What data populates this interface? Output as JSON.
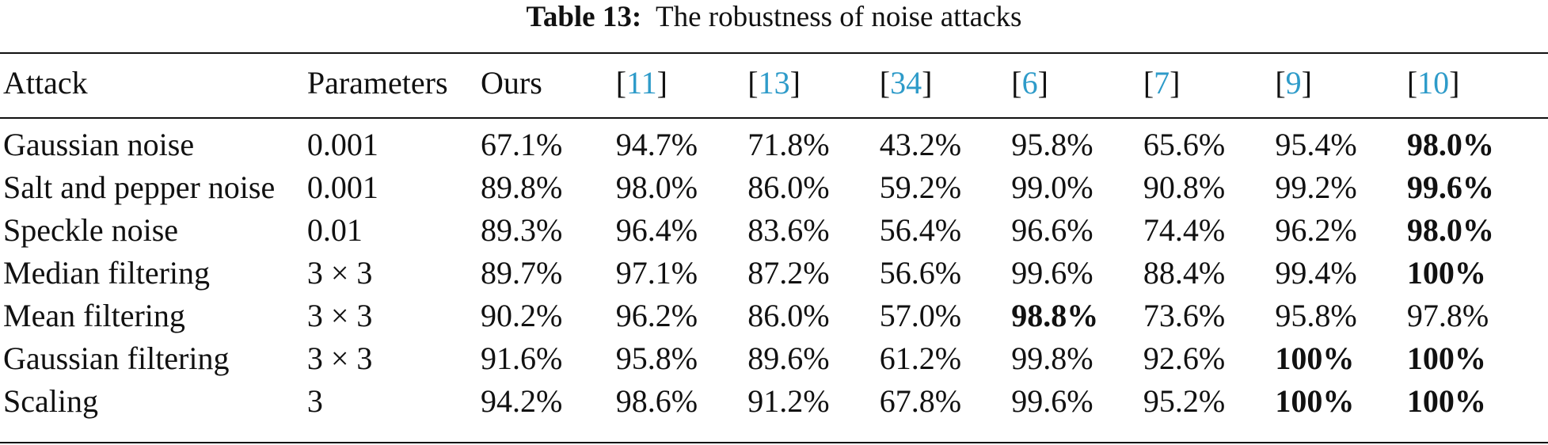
{
  "caption": {
    "label": "Table 13:",
    "text": "The robustness of noise attacks"
  },
  "table": {
    "headers": [
      {
        "text": "Attack",
        "ref": false
      },
      {
        "text": "Parameters",
        "ref": false
      },
      {
        "text": "Ours",
        "ref": false
      },
      {
        "text": "11",
        "ref": true
      },
      {
        "text": "13",
        "ref": true
      },
      {
        "text": "34",
        "ref": true
      },
      {
        "text": "6",
        "ref": true
      },
      {
        "text": "7",
        "ref": true
      },
      {
        "text": "9",
        "ref": true
      },
      {
        "text": "10",
        "ref": true
      }
    ],
    "rows": [
      {
        "cells": [
          "Gaussian noise",
          "0.001",
          "67.1%",
          "94.7%",
          "71.8%",
          "43.2%",
          "95.8%",
          "65.6%",
          "95.4%",
          "98.0%"
        ],
        "bold": [
          9
        ]
      },
      {
        "cells": [
          "Salt and pepper noise",
          "0.001",
          "89.8%",
          "98.0%",
          "86.0%",
          "59.2%",
          "99.0%",
          "90.8%",
          "99.2%",
          "99.6%"
        ],
        "bold": [
          9
        ]
      },
      {
        "cells": [
          "Speckle noise",
          "0.01",
          "89.3%",
          "96.4%",
          "83.6%",
          "56.4%",
          "96.6%",
          "74.4%",
          "96.2%",
          "98.0%"
        ],
        "bold": [
          9
        ]
      },
      {
        "cells": [
          "Median filtering",
          "3 × 3",
          "89.7%",
          "97.1%",
          "87.2%",
          "56.6%",
          "99.6%",
          "88.4%",
          "99.4%",
          "100%"
        ],
        "bold": [
          9
        ]
      },
      {
        "cells": [
          "Mean filtering",
          "3 × 3",
          "90.2%",
          "96.2%",
          "86.0%",
          "57.0%",
          "98.8%",
          "73.6%",
          "95.8%",
          "97.8%"
        ],
        "bold": [
          6
        ]
      },
      {
        "cells": [
          "Gaussian filtering",
          "3 × 3",
          "91.6%",
          "95.8%",
          "89.6%",
          "61.2%",
          "99.8%",
          "92.6%",
          "100%",
          "100%"
        ],
        "bold": [
          8,
          9
        ]
      },
      {
        "cells": [
          "Scaling",
          "3",
          "94.2%",
          "98.6%",
          "91.2%",
          "67.8%",
          "99.6%",
          "95.2%",
          "100%",
          "100%"
        ],
        "bold": [
          8,
          9
        ]
      }
    ]
  }
}
